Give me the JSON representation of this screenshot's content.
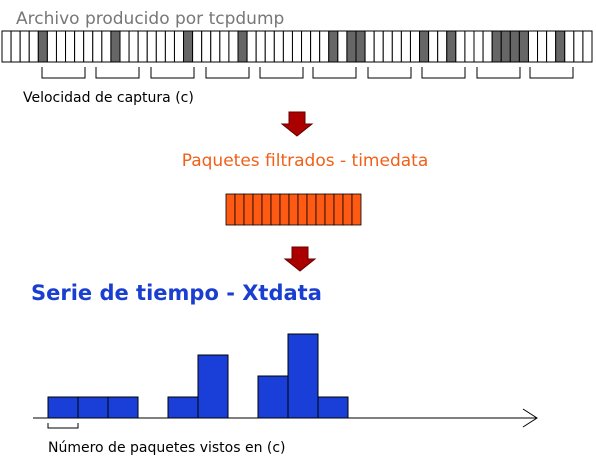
{
  "header": {
    "title": "Archivo producido por tcpdump"
  },
  "capture_label": "Velocidad de captura (c)",
  "filtered_label": "Paquetes filtrados - timedata",
  "series_title": "Serie de tiempo - Xtdata",
  "histogram": {
    "values": [
      1,
      1,
      1,
      0,
      1,
      3,
      0,
      2,
      4,
      1
    ]
  },
  "bin_label": "Número de paquetes vistos en (c)"
}
